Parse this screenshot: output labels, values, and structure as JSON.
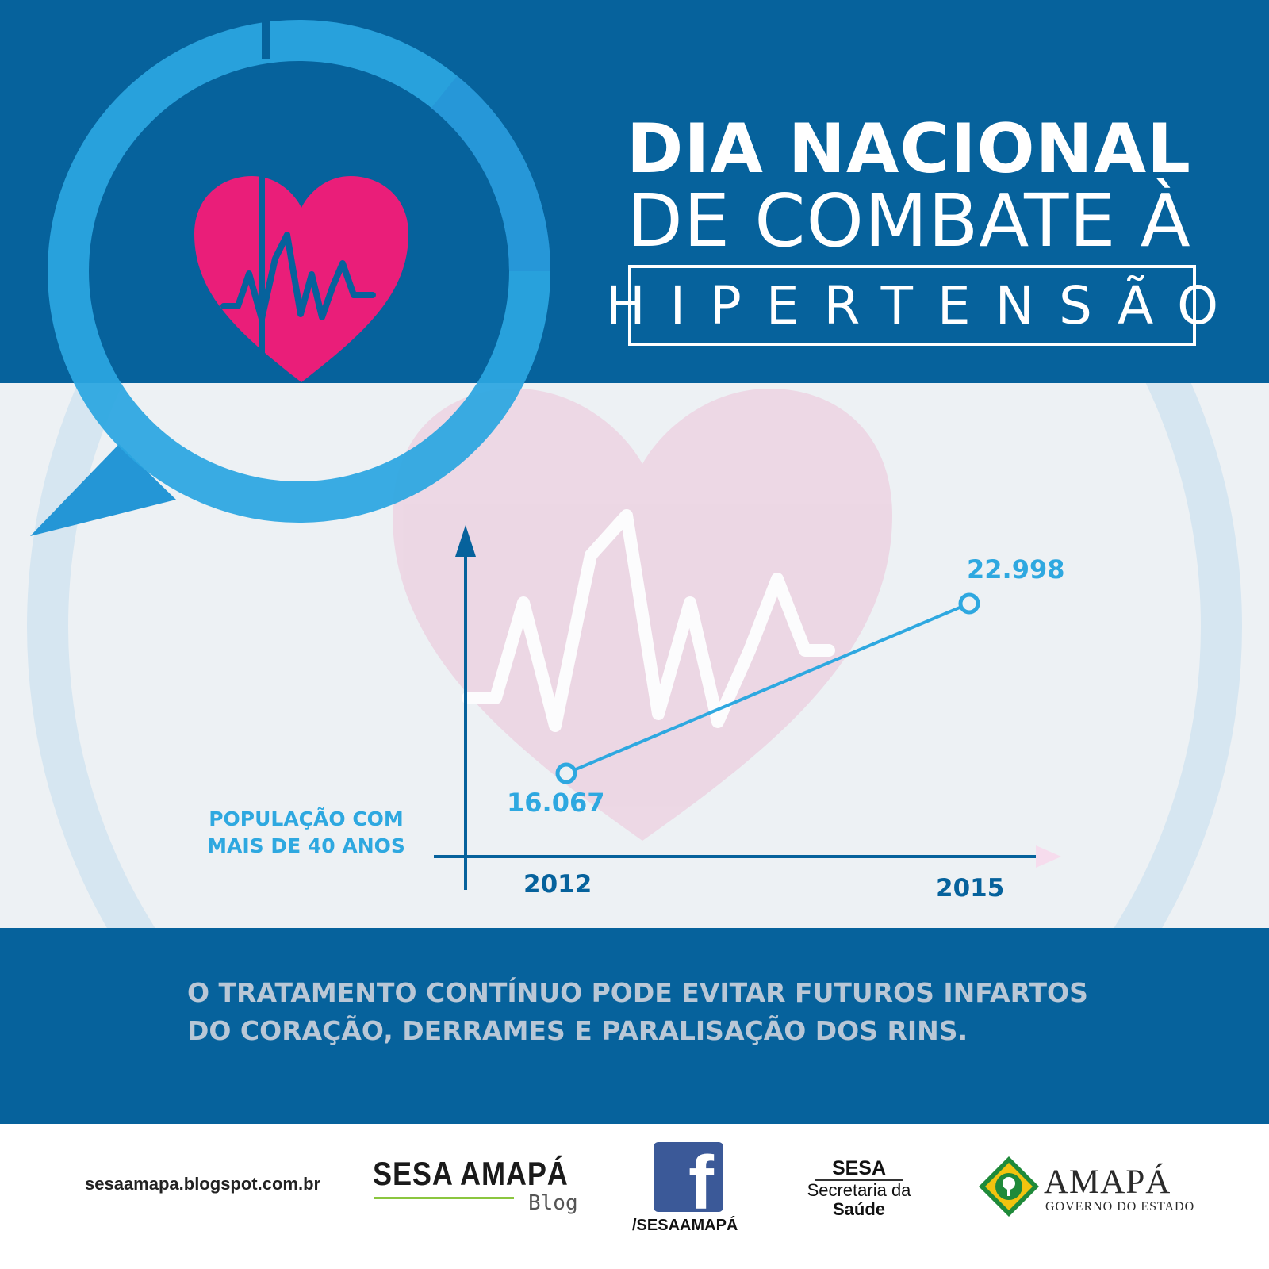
{
  "title": {
    "line1": "DIA NACIONAL",
    "line2": "DE COMBATE À",
    "line3": "HIPERTENSÃO"
  },
  "chart_data": {
    "type": "line",
    "categories": [
      "2012",
      "2015"
    ],
    "series": [
      {
        "values": [
          16067,
          22998
        ]
      }
    ],
    "value_labels": [
      "16.067",
      "22.998"
    ],
    "ylabel": "POPULAÇÃO COM MAIS DE 40 ANOS",
    "ylabel_lines": [
      "POPULAÇÃO COM",
      "MAIS DE 40 ANOS"
    ],
    "xlabel": "",
    "grid": false,
    "marker": "hollow-circle"
  },
  "message": {
    "line1": "O TRATAMENTO CONTÍNUO PODE EVITAR FUTUROS INFARTOS",
    "line2": "DO CORAÇÃO, DERRAMES E PARALISAÇÃO DOS RINS."
  },
  "footer": {
    "url": "sesaamapa.blogspot.com.br",
    "sesa_blog_name": "SESA AMAPÁ",
    "sesa_blog_sub": "Blog",
    "facebook_letter": "f",
    "facebook_handle": "/SESAAMAPÁ",
    "sesa_acronym": "SESA",
    "sesa_line2": "Secretaria da",
    "sesa_line3": "Saúde",
    "amapa_name": "AMAPÁ",
    "amapa_sub": "GOVERNO DO ESTADO"
  },
  "colors": {
    "dark_blue": "#06629c",
    "light_blue": "#2ea8e0",
    "pink": "#ea1e79",
    "background": "#edf1f4",
    "message_text": "#b9c7d6"
  },
  "icons": {
    "hero": "heart-pulse-icon",
    "bubble": "speech-bubble-ring",
    "watermark": "heart-watermark-icon"
  }
}
